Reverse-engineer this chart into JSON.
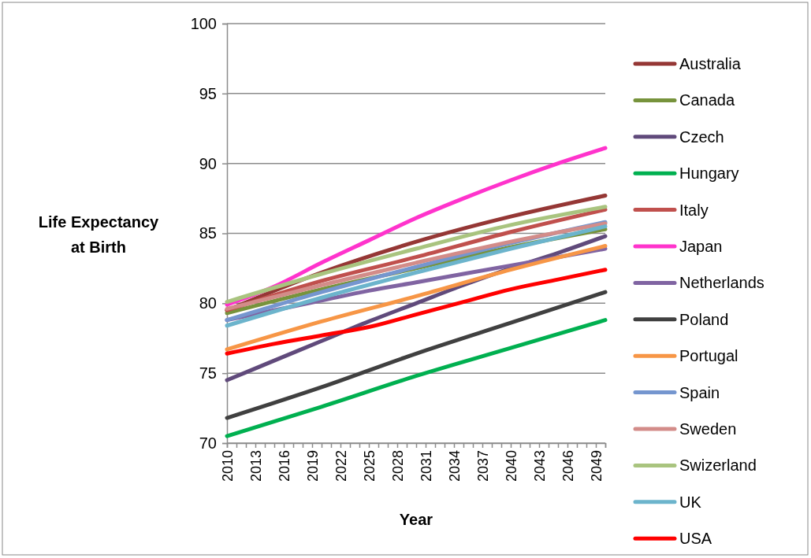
{
  "chart_data": {
    "type": "line",
    "xlabel": "Year",
    "ylabel": "Life Expectancy at Birth",
    "xlim": [
      2010,
      2050
    ],
    "xticks": [
      {
        "value": 2010,
        "label": "2010"
      },
      {
        "value": 2011,
        "label": null
      },
      {
        "value": 2012,
        "label": null
      },
      {
        "value": 2013,
        "label": "2013"
      },
      {
        "value": 2014,
        "label": null
      },
      {
        "value": 2015,
        "label": null
      },
      {
        "value": 2016,
        "label": "2016"
      },
      {
        "value": 2017,
        "label": null
      },
      {
        "value": 2018,
        "label": null
      },
      {
        "value": 2019,
        "label": "2019"
      },
      {
        "value": 2020,
        "label": null
      },
      {
        "value": 2021,
        "label": null
      },
      {
        "value": 2022,
        "label": "2022"
      },
      {
        "value": 2023,
        "label": null
      },
      {
        "value": 2024,
        "label": null
      },
      {
        "value": 2025,
        "label": "2025"
      },
      {
        "value": 2026,
        "label": null
      },
      {
        "value": 2027,
        "label": null
      },
      {
        "value": 2028,
        "label": "2028"
      },
      {
        "value": 2029,
        "label": null
      },
      {
        "value": 2030,
        "label": null
      },
      {
        "value": 2031,
        "label": "2031"
      },
      {
        "value": 2032,
        "label": null
      },
      {
        "value": 2033,
        "label": null
      },
      {
        "value": 2034,
        "label": "2034"
      },
      {
        "value": 2035,
        "label": null
      },
      {
        "value": 2036,
        "label": null
      },
      {
        "value": 2037,
        "label": "2037"
      },
      {
        "value": 2038,
        "label": null
      },
      {
        "value": 2039,
        "label": null
      },
      {
        "value": 2040,
        "label": "2040"
      },
      {
        "value": 2041,
        "label": null
      },
      {
        "value": 2042,
        "label": null
      },
      {
        "value": 2043,
        "label": "2043"
      },
      {
        "value": 2044,
        "label": null
      },
      {
        "value": 2045,
        "label": null
      },
      {
        "value": 2046,
        "label": "2046"
      },
      {
        "value": 2047,
        "label": null
      },
      {
        "value": 2048,
        "label": null
      },
      {
        "value": 2049,
        "label": "2049"
      },
      {
        "value": 2050,
        "label": null
      }
    ],
    "ylim": [
      70,
      100
    ],
    "yticks": [
      70,
      75,
      80,
      85,
      90,
      95,
      100
    ],
    "grid": "y",
    "legend": "right",
    "marker": "none",
    "line_style": "solid",
    "x": [
      2010,
      2020,
      2030,
      2040,
      2050
    ],
    "series": [
      {
        "name": "Australia",
        "color": "#953735",
        "values": [
          79.5,
          82.2,
          84.4,
          86.2,
          87.7
        ]
      },
      {
        "name": "Canada",
        "color": "#77933c",
        "values": [
          79.3,
          81.0,
          82.5,
          84.0,
          85.3
        ]
      },
      {
        "name": "Czech",
        "color": "#604a7b",
        "x": [
          2010,
          2015,
          2020,
          2025,
          2030,
          2035,
          2040,
          2045,
          2050
        ],
        "values": [
          74.5,
          75.9,
          77.3,
          78.7,
          80.0,
          81.3,
          82.5,
          83.6,
          84.8
        ]
      },
      {
        "name": "Hungary",
        "color": "#00b050",
        "values": [
          70.5,
          72.6,
          74.8,
          76.8,
          78.8
        ]
      },
      {
        "name": "Italy",
        "color": "#c0504d",
        "values": [
          79.5,
          81.6,
          83.3,
          85.1,
          86.7
        ]
      },
      {
        "name": "Japan",
        "color": "#ff33cc",
        "x": [
          2010,
          2015,
          2020,
          2025,
          2030,
          2035,
          2040,
          2045,
          2050
        ],
        "values": [
          79.9,
          81.2,
          82.9,
          84.5,
          86.1,
          87.5,
          88.8,
          90.0,
          91.1
        ]
      },
      {
        "name": "Netherlands",
        "color": "#8064a2",
        "x": [
          2010,
          2015,
          2020,
          2025,
          2030,
          2035,
          2040,
          2045,
          2050
        ],
        "values": [
          78.8,
          79.5,
          80.2,
          80.9,
          81.5,
          82.1,
          82.7,
          83.3,
          83.9
        ]
      },
      {
        "name": "Poland",
        "color": "#404040",
        "values": [
          71.8,
          74.0,
          76.4,
          78.6,
          80.8
        ]
      },
      {
        "name": "Portugal",
        "color": "#f79646",
        "values": [
          76.7,
          78.7,
          80.5,
          82.4,
          84.1
        ]
      },
      {
        "name": "Spain",
        "color": "#7596cf",
        "values": [
          78.8,
          80.8,
          82.6,
          84.3,
          85.8
        ]
      },
      {
        "name": "Sweden",
        "color": "#d38c89",
        "values": [
          79.6,
          81.3,
          82.9,
          84.4,
          85.7
        ]
      },
      {
        "name": "Swizerland",
        "color": "#a9c47f",
        "values": [
          80.1,
          82.1,
          83.9,
          85.6,
          86.9
        ]
      },
      {
        "name": "UK",
        "color": "#6cb4cc",
        "values": [
          78.4,
          80.4,
          82.2,
          83.9,
          85.5
        ]
      },
      {
        "name": "USA",
        "color": "#ff0000",
        "x": [
          2010,
          2015,
          2020,
          2025,
          2030,
          2035,
          2040,
          2045,
          2050
        ],
        "values": [
          76.4,
          77.1,
          77.7,
          78.3,
          79.2,
          80.1,
          81.0,
          81.7,
          82.4
        ]
      }
    ]
  }
}
